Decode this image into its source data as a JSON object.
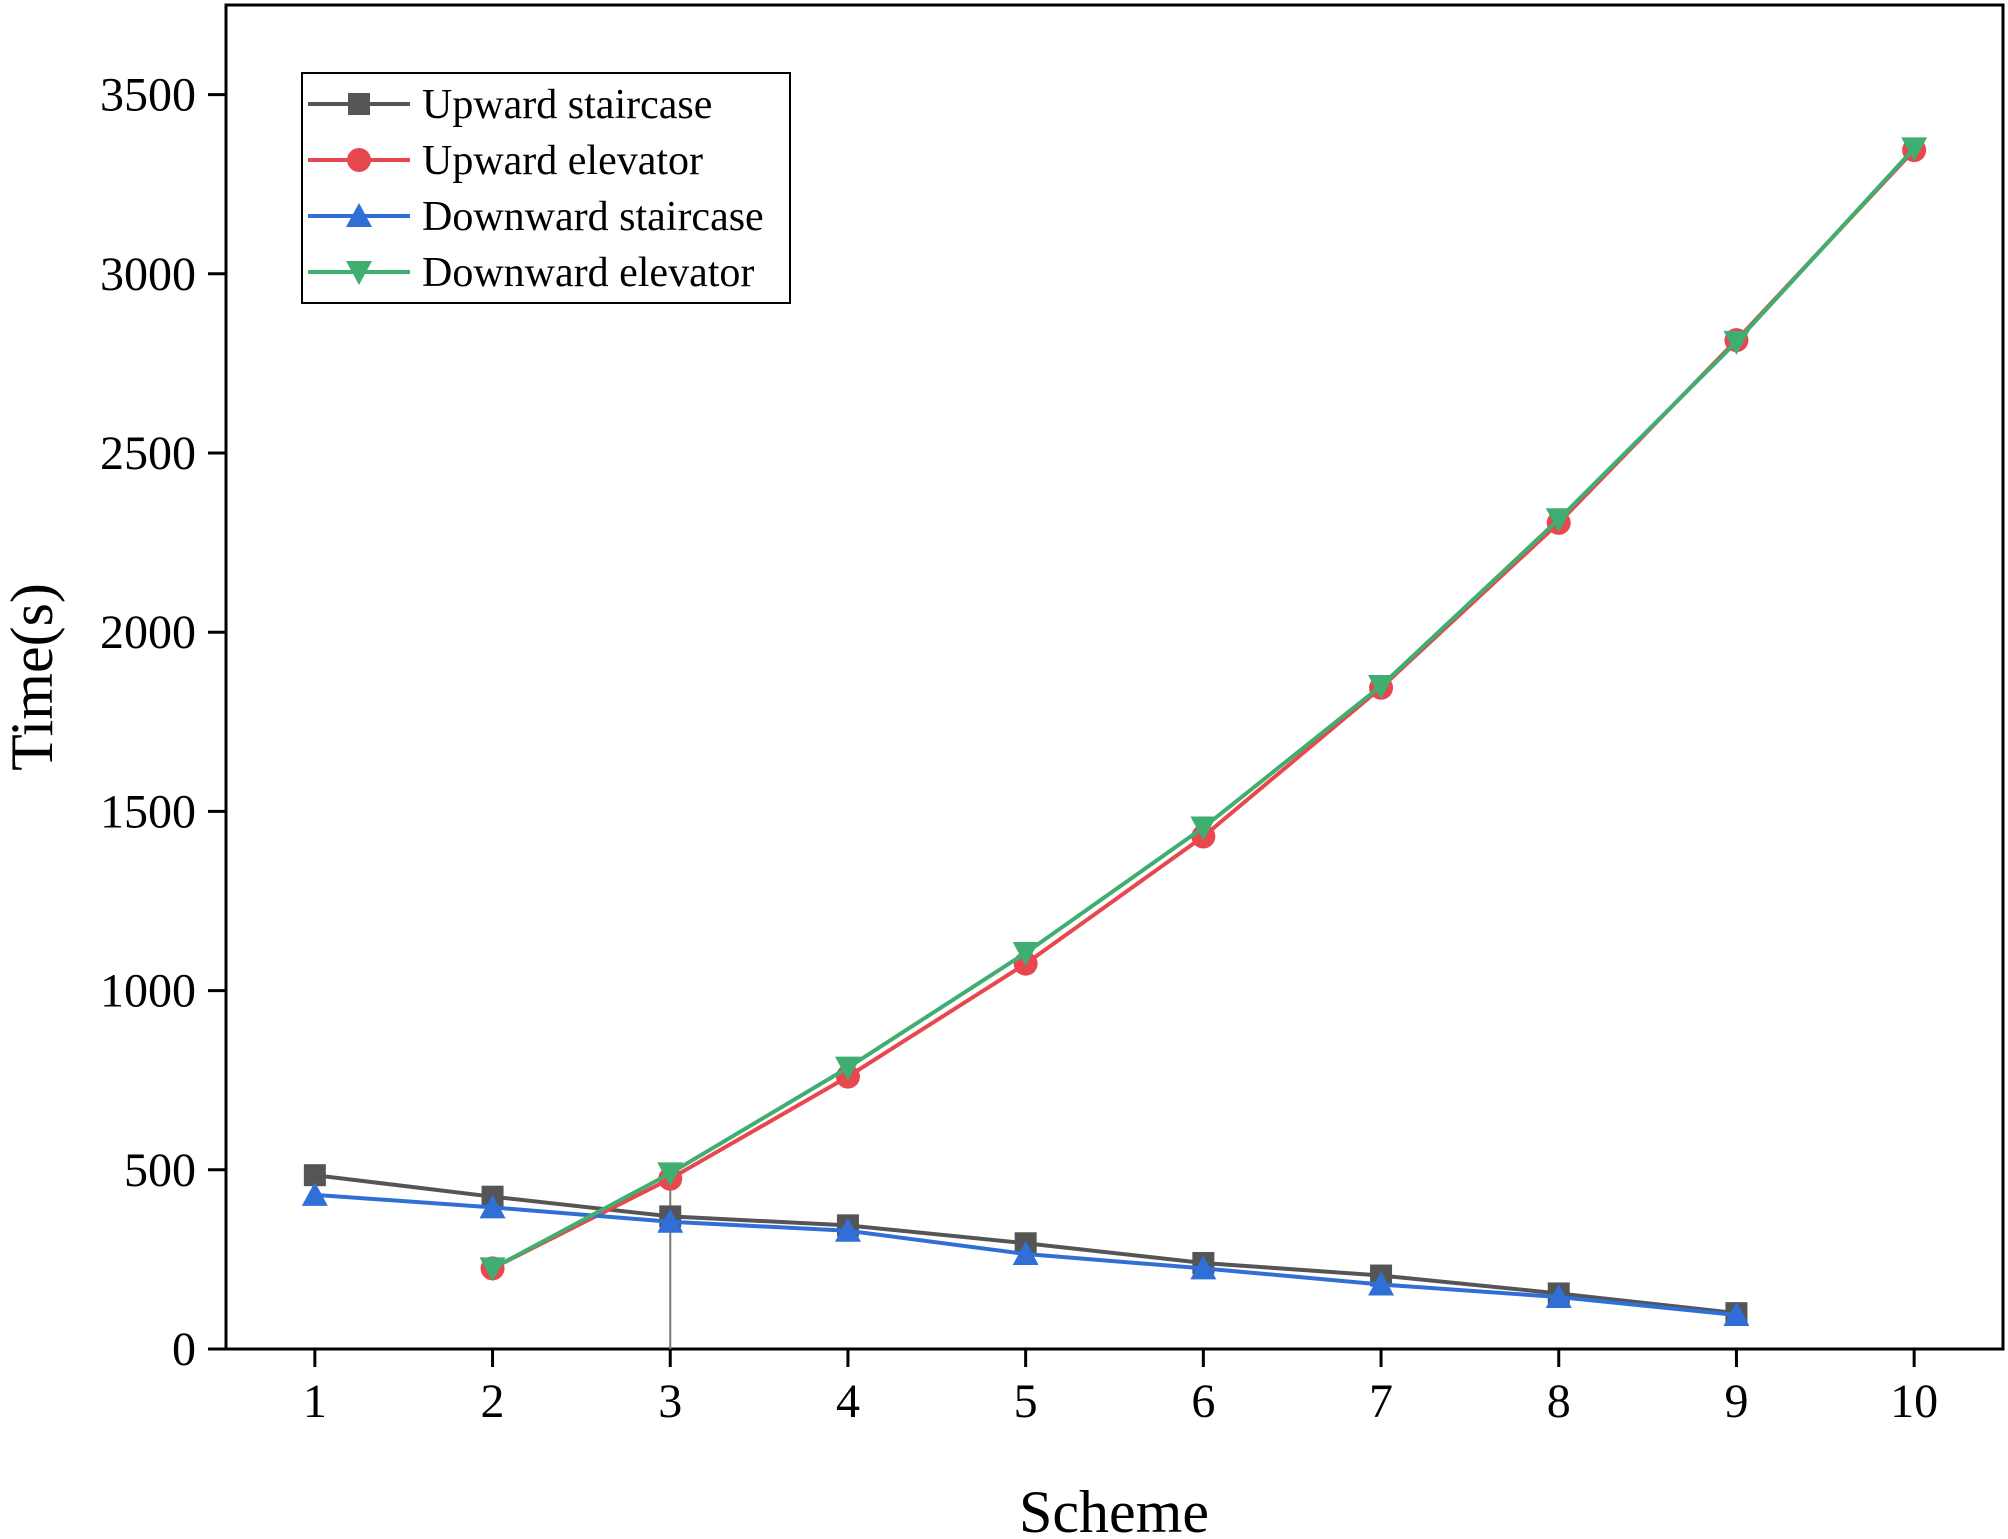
{
  "chart_data": {
    "type": "line",
    "title": "",
    "xlabel": "Scheme",
    "ylabel": "Time(s)",
    "x": [
      1,
      2,
      3,
      4,
      5,
      6,
      7,
      8,
      9,
      10
    ],
    "xlim": [
      0.5,
      10.5
    ],
    "ylim": [
      0,
      3750
    ],
    "xticks": [
      "1",
      "2",
      "3",
      "4",
      "5",
      "6",
      "7",
      "8",
      "9",
      "10"
    ],
    "yticks": [
      0,
      500,
      1000,
      1500,
      2000,
      2500,
      3000,
      3500
    ],
    "grid": false,
    "legend_position": "top-left",
    "reference_line_x": 3,
    "series": [
      {
        "name": "Upward staircase",
        "color": "#555555",
        "marker": "square",
        "x": [
          1,
          2,
          3,
          4,
          5,
          6,
          7,
          8,
          9
        ],
        "values": [
          485,
          425,
          370,
          345,
          295,
          240,
          205,
          155,
          100
        ]
      },
      {
        "name": "Upward elevator",
        "color": "#e8484d",
        "marker": "circle",
        "x": [
          2,
          3,
          4,
          5,
          6,
          7,
          8,
          9,
          10
        ],
        "values": [
          225,
          475,
          760,
          1075,
          1430,
          1845,
          2305,
          2815,
          3345
        ]
      },
      {
        "name": "Downward staircase",
        "color": "#2f6fd6",
        "marker": "triangle-up",
        "x": [
          1,
          2,
          3,
          4,
          5,
          6,
          7,
          8,
          9
        ],
        "values": [
          430,
          395,
          355,
          330,
          265,
          225,
          180,
          145,
          95
        ]
      },
      {
        "name": "Downward elevator",
        "color": "#3fae70",
        "marker": "triangle-down",
        "x": [
          2,
          3,
          4,
          5,
          6,
          7,
          8,
          9,
          10
        ],
        "values": [
          225,
          490,
          785,
          1105,
          1455,
          1850,
          2315,
          2810,
          3350
        ]
      }
    ]
  }
}
